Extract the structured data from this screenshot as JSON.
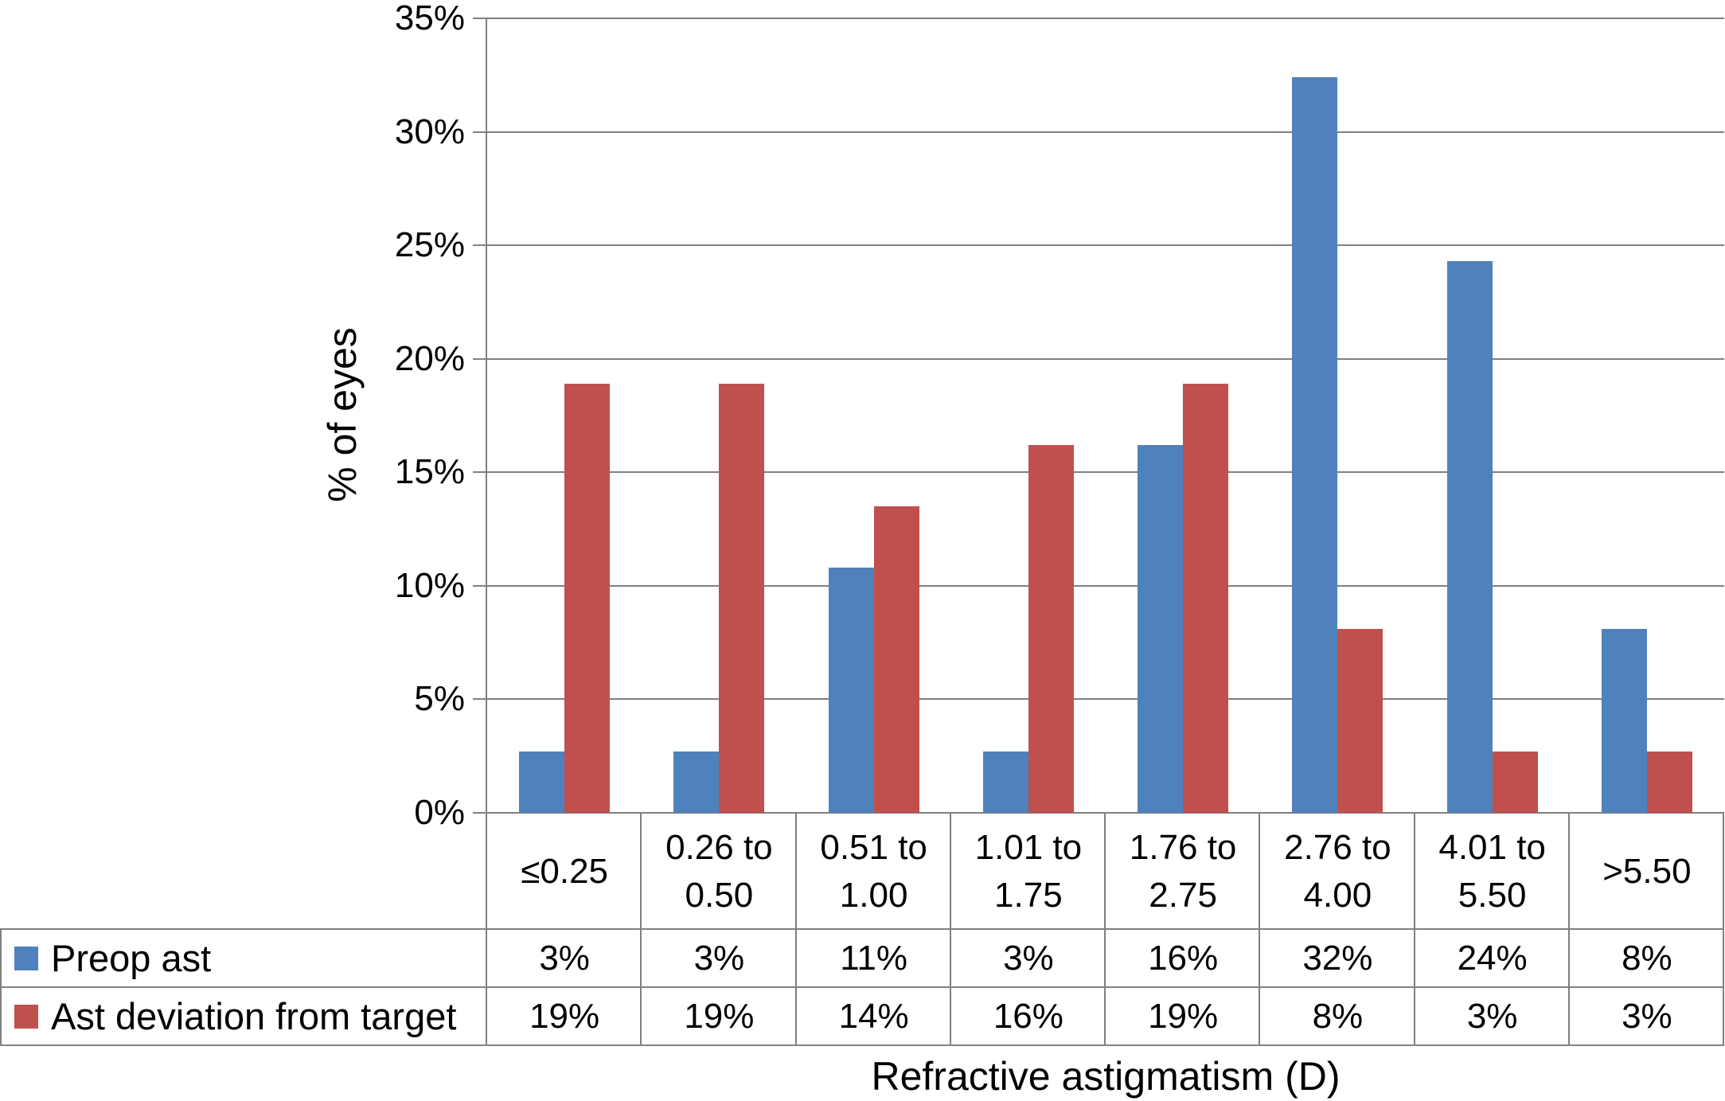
{
  "chart_data": {
    "type": "bar",
    "title": "",
    "xlabel": "Refractive astigmatism (D)",
    "ylabel": "% of eyes",
    "categories": [
      "≤0.25",
      "0.26 to 0.50",
      "0.51 to 1.00",
      "1.01 to 1.75",
      "1.76 to 2.75",
      "2.76 to 4.00",
      "4.01 to 5.50",
      ">5.50"
    ],
    "category_label_lines": [
      [
        "≤0.25"
      ],
      [
        "0.26 to",
        "0.50"
      ],
      [
        "0.51 to",
        "1.00"
      ],
      [
        "1.01 to",
        "1.75"
      ],
      [
        "1.76 to",
        "2.75"
      ],
      [
        "2.76 to",
        "4.00"
      ],
      [
        "4.01 to",
        "5.50"
      ],
      [
        ">5.50"
      ]
    ],
    "series": [
      {
        "name": "Preop ast",
        "color": "#4F81BD",
        "values": [
          2.7,
          2.7,
          10.8,
          2.7,
          16.2,
          32.4,
          24.3,
          8.1
        ],
        "table_values": [
          "3%",
          "3%",
          "11%",
          "3%",
          "16%",
          "32%",
          "24%",
          "8%"
        ]
      },
      {
        "name": "Ast deviation from target",
        "color": "#C0504D",
        "values": [
          18.9,
          18.9,
          13.5,
          16.2,
          18.9,
          8.1,
          2.7,
          2.7
        ],
        "table_values": [
          "19%",
          "19%",
          "14%",
          "16%",
          "19%",
          "8%",
          "3%",
          "3%"
        ]
      }
    ],
    "ylim": [
      0,
      35
    ],
    "ytick_step": 5,
    "ytick_labels": [
      "0%",
      "5%",
      "10%",
      "15%",
      "20%",
      "25%",
      "30%",
      "35%"
    ],
    "grid": true,
    "gridline_color": "#808080",
    "legend_position": "table-left"
  }
}
